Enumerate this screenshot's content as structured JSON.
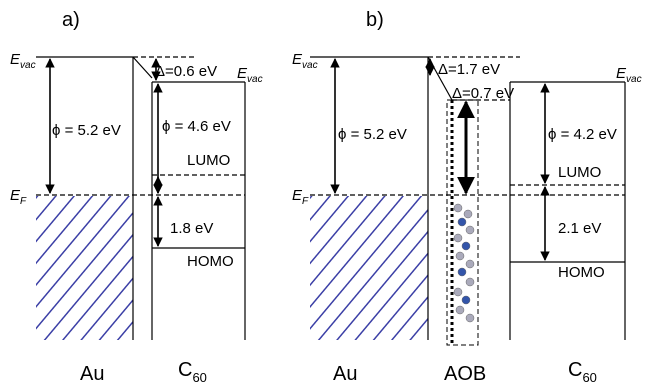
{
  "panels": [
    {
      "label": "a)",
      "vacuum_metal": {
        "symbol": "E",
        "subscript": "vac"
      },
      "fermi": {
        "symbol": "E",
        "subscript": "F"
      },
      "work_function_metal": "ϕ = 5.2 eV",
      "deltas": [
        "Δ=0.6 eV"
      ],
      "vacuum_c60": {
        "symbol": "E",
        "subscript": "vac"
      },
      "work_function_c60": "ϕ = 4.6 eV",
      "lumo": "LUMO",
      "homo": "HOMO",
      "gap": "1.8 eV",
      "materials": [
        {
          "name": "Au"
        },
        {
          "name": "C",
          "subscript": "60"
        }
      ]
    },
    {
      "label": "b)",
      "vacuum_metal": {
        "symbol": "E",
        "subscript": "vac"
      },
      "fermi": {
        "symbol": "E",
        "subscript": "F"
      },
      "work_function_metal": "ϕ = 5.2 eV",
      "deltas": [
        "Δ=1.7 eV",
        "Δ=0.7 eV"
      ],
      "vacuum_c60": {
        "symbol": "E",
        "subscript": "vac"
      },
      "work_function_c60": "ϕ = 4.2 eV",
      "lumo": "LUMO",
      "homo": "HOMO",
      "gap": "2.1 eV",
      "materials": [
        {
          "name": "Au"
        },
        {
          "name": "AOB"
        },
        {
          "name": "C",
          "subscript": "60"
        }
      ]
    }
  ]
}
